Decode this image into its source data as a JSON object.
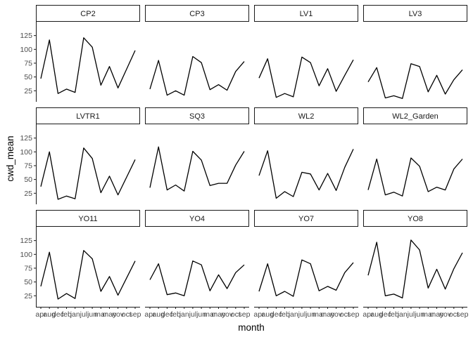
{
  "chart_data": {
    "type": "line",
    "xlabel": "month",
    "ylabel": "cwd_mean",
    "ylim": [
      5,
      150
    ],
    "yticks": [
      25,
      50,
      75,
      100,
      125
    ],
    "grid": false,
    "categories": [
      "apr",
      "aug",
      "dec",
      "feb",
      "jan",
      "jul",
      "jun",
      "mar",
      "may",
      "nov",
      "oct",
      "sep"
    ],
    "panels": [
      {
        "name": "CP2",
        "values": [
          47,
          117,
          20,
          28,
          22,
          121,
          104,
          35,
          69,
          30,
          64,
          98
        ]
      },
      {
        "name": "CP3",
        "values": [
          28,
          80,
          17,
          25,
          17,
          87,
          76,
          27,
          36,
          26,
          60,
          78
        ]
      },
      {
        "name": "LV1",
        "values": [
          48,
          83,
          13,
          20,
          14,
          86,
          76,
          34,
          65,
          24,
          53,
          81
        ]
      },
      {
        "name": "LV3",
        "values": [
          41,
          67,
          12,
          16,
          11,
          74,
          69,
          23,
          53,
          19,
          45,
          63
        ]
      },
      {
        "name": "LVTR1",
        "values": [
          37,
          100,
          14,
          20,
          15,
          107,
          88,
          26,
          56,
          22,
          54,
          86
        ]
      },
      {
        "name": "SQ3",
        "values": [
          35,
          109,
          31,
          40,
          29,
          101,
          85,
          39,
          43,
          43,
          76,
          101
        ]
      },
      {
        "name": "WL2",
        "values": [
          57,
          102,
          16,
          28,
          19,
          63,
          60,
          31,
          61,
          30,
          72,
          105
        ]
      },
      {
        "name": "WL2_Garden",
        "values": [
          31,
          87,
          22,
          27,
          20,
          89,
          74,
          28,
          36,
          31,
          69,
          87
        ]
      },
      {
        "name": "YO11",
        "values": [
          42,
          104,
          19,
          29,
          20,
          107,
          92,
          33,
          60,
          26,
          57,
          88
        ]
      },
      {
        "name": "YO4",
        "values": [
          54,
          83,
          27,
          30,
          25,
          88,
          81,
          34,
          63,
          38,
          67,
          81
        ]
      },
      {
        "name": "YO7",
        "values": [
          33,
          83,
          25,
          33,
          24,
          90,
          83,
          34,
          42,
          35,
          67,
          85
        ]
      },
      {
        "name": "YO8",
        "values": [
          62,
          122,
          25,
          28,
          21,
          126,
          108,
          39,
          73,
          37,
          74,
          103
        ]
      }
    ]
  }
}
